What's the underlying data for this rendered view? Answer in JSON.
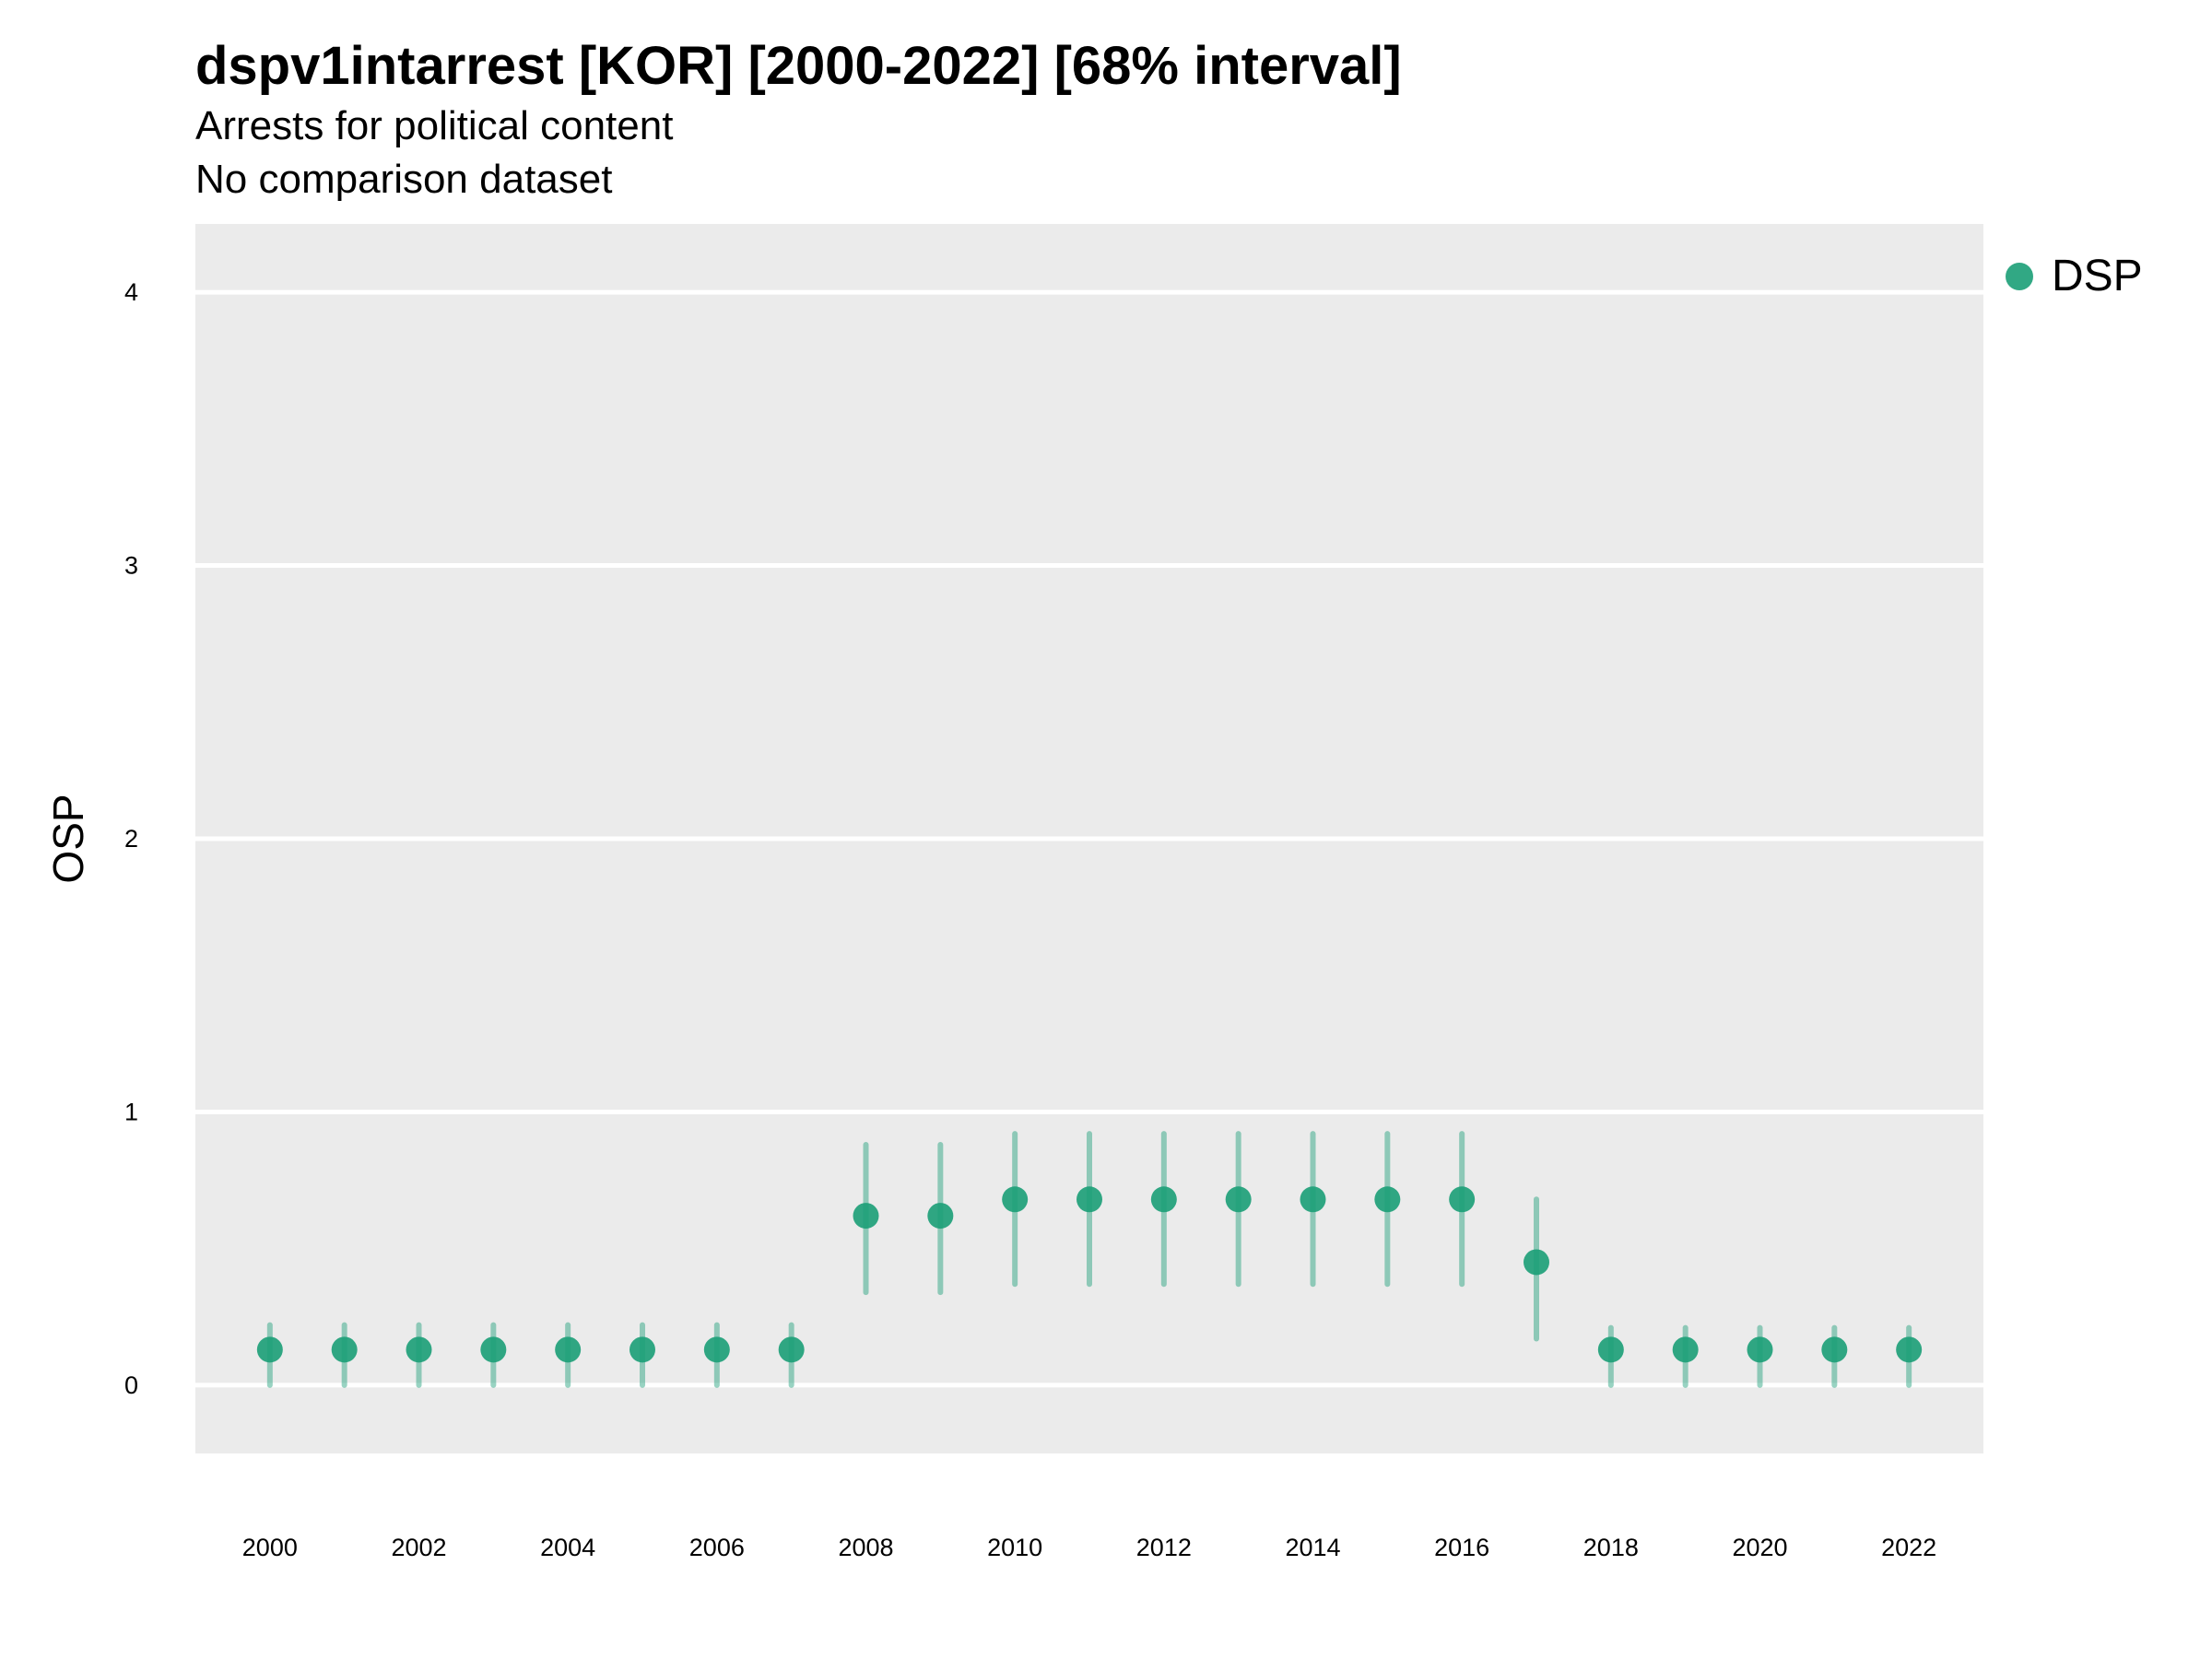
{
  "chart_data": {
    "type": "scatter",
    "title": "dspv1intarrest [KOR] [2000-2022] [68% interval]",
    "subtitle": "Arrests for political content",
    "subtitle2": "No comparison dataset",
    "ylabel": "OSP",
    "xlabel": "",
    "ylim": [
      -0.25,
      4.25
    ],
    "xlim": [
      1999,
      2023
    ],
    "grid": true,
    "legend_position": "right",
    "x_ticks": [
      2000,
      2002,
      2004,
      2006,
      2008,
      2010,
      2012,
      2014,
      2016,
      2018,
      2020,
      2022
    ],
    "y_ticks": [
      0,
      1,
      2,
      3,
      4
    ],
    "series": [
      {
        "name": "DSP",
        "color": "#1b9e77",
        "x": [
          2000,
          2001,
          2002,
          2003,
          2004,
          2005,
          2006,
          2007,
          2008,
          2009,
          2010,
          2011,
          2012,
          2013,
          2014,
          2015,
          2016,
          2017,
          2018,
          2019,
          2020,
          2021,
          2022
        ],
        "values": [
          0.13,
          0.13,
          0.13,
          0.13,
          0.13,
          0.13,
          0.13,
          0.13,
          0.62,
          0.62,
          0.68,
          0.68,
          0.68,
          0.68,
          0.68,
          0.68,
          0.68,
          0.45,
          0.13,
          0.13,
          0.13,
          0.13,
          0.13
        ],
        "lower": [
          0.0,
          0.0,
          0.0,
          0.0,
          0.0,
          0.0,
          0.0,
          0.0,
          0.34,
          0.34,
          0.37,
          0.37,
          0.37,
          0.37,
          0.37,
          0.37,
          0.37,
          0.17,
          0.0,
          0.0,
          0.0,
          0.0,
          0.0
        ],
        "upper": [
          0.22,
          0.22,
          0.22,
          0.22,
          0.22,
          0.22,
          0.22,
          0.22,
          0.88,
          0.88,
          0.92,
          0.92,
          0.92,
          0.92,
          0.92,
          0.92,
          0.92,
          0.68,
          0.21,
          0.21,
          0.21,
          0.21,
          0.21
        ]
      }
    ]
  }
}
